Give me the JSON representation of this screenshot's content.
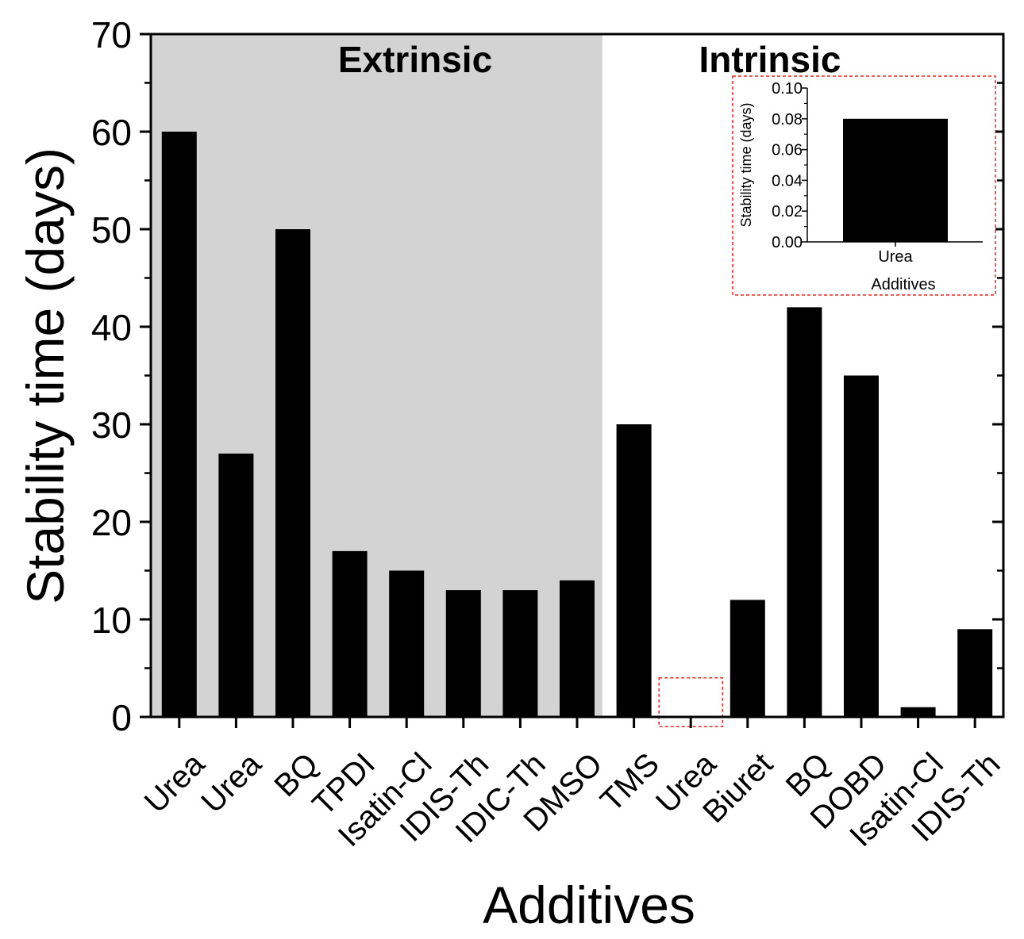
{
  "chart_data": [
    {
      "type": "bar",
      "ylabel": "Stability time (days)",
      "xlabel": "Additives",
      "ylim": [
        0,
        70
      ],
      "yticks": [
        0,
        10,
        20,
        30,
        40,
        50,
        60,
        70
      ],
      "ytick_labels": [
        "0",
        "10",
        "20",
        "30",
        "40",
        "50",
        "60",
        "70"
      ],
      "categories": [
        "Urea",
        "Urea",
        "BQ",
        "TPDI",
        "Isatin-Cl",
        "IDIS-Th",
        "IDIC-Th",
        "DMSO",
        "TMS",
        "Urea",
        "Biuret",
        "BQ",
        "DOBD",
        "Isatin-Cl",
        "IDIS-Th"
      ],
      "values": [
        60,
        27,
        50,
        17,
        15,
        13,
        13,
        14,
        30,
        0.08,
        12,
        42,
        35,
        1,
        9
      ],
      "regions": [
        {
          "label": "Extrinsic",
          "start_index": 0,
          "end_index": 7,
          "color": "#d3d3d3"
        },
        {
          "label": "Intrinsic",
          "start_index": 8,
          "end_index": 14,
          "color": "#ffffff"
        }
      ],
      "bar_color": "#000000",
      "highlight": {
        "index": 9,
        "color": "#e8251f"
      }
    },
    {
      "type": "bar",
      "role": "inset",
      "ylabel": "Stability time (days)",
      "xlabel": "Additives",
      "ylim": [
        0,
        0.1
      ],
      "yticks": [
        0,
        0.02,
        0.04,
        0.06,
        0.08,
        0.1
      ],
      "ytick_labels": [
        "0.00",
        "0.02",
        "0.04",
        "0.06",
        "0.08",
        "0.10"
      ],
      "categories": [
        "Urea"
      ],
      "values": [
        0.08
      ],
      "bar_color": "#000000",
      "frame_color": "#e8251f"
    }
  ]
}
